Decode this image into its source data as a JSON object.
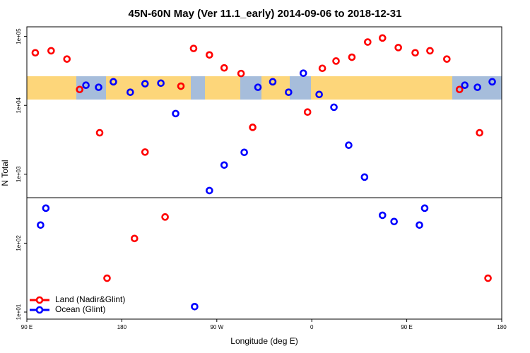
{
  "chart_data": {
    "type": "scatter",
    "title": "45N-60N May (Ver 11.1_early)   2014-09-06 to 2018-12-31",
    "x_label": "Longitude (deg E)",
    "y_label": "N Total",
    "xlim": [
      90,
      540
    ],
    "ylim": [
      7.9,
      138000
    ],
    "y_scale": "log",
    "legend": "bottom-left",
    "xticks": [
      {
        "value": 90,
        "label": "90 E"
      },
      180,
      {
        "value": 270,
        "label": "90 W"
      },
      {
        "value": 360,
        "label": "0"
      },
      {
        "value": 450,
        "label": "90 E"
      },
      {
        "value": 540,
        "label": "180"
      }
    ],
    "yticks": [
      {
        "value": 10,
        "label": "1e+01"
      },
      {
        "value": 100,
        "label": "1e+02"
      },
      {
        "value": 1000,
        "label": "1e+03"
      },
      {
        "value": 10000,
        "label": "1e+04"
      },
      {
        "value": 100000,
        "label": "1e+05"
      }
    ],
    "series": [
      {
        "name": "Land (Nadir&Glint)",
        "color": "#ff0000",
        "x": [
          98,
          113,
          128,
          140,
          159,
          166,
          192,
          202,
          221,
          236,
          248,
          263,
          277,
          293,
          304,
          356,
          370,
          383,
          398,
          413,
          427,
          442,
          458,
          472,
          488,
          500,
          519,
          527
        ],
        "values": [
          58000,
          62000,
          47000,
          17000,
          4000,
          31,
          117,
          2100,
          240,
          19000,
          67000,
          54000,
          35000,
          29000,
          4800,
          8000,
          34500,
          44000,
          50000,
          83000,
          95000,
          69000,
          58000,
          62000,
          47000,
          17000,
          4000,
          31
        ]
      },
      {
        "name": "Ocean (Glint)",
        "color": "#0000ff",
        "x": [
          103,
          108,
          146,
          158,
          172,
          188,
          202,
          217,
          231,
          249,
          263,
          277,
          296,
          309,
          323,
          338,
          352,
          367,
          381,
          395,
          410,
          427,
          438,
          462,
          467,
          505,
          517,
          531
        ],
        "values": [
          183,
          322,
          19600,
          18300,
          22000,
          15500,
          20600,
          21000,
          7600,
          12,
          580,
          1360,
          2080,
          18300,
          22000,
          15500,
          29300,
          14400,
          9400,
          2640,
          910,
          254,
          206,
          183,
          322,
          19600,
          18300,
          22000
        ]
      }
    ]
  }
}
